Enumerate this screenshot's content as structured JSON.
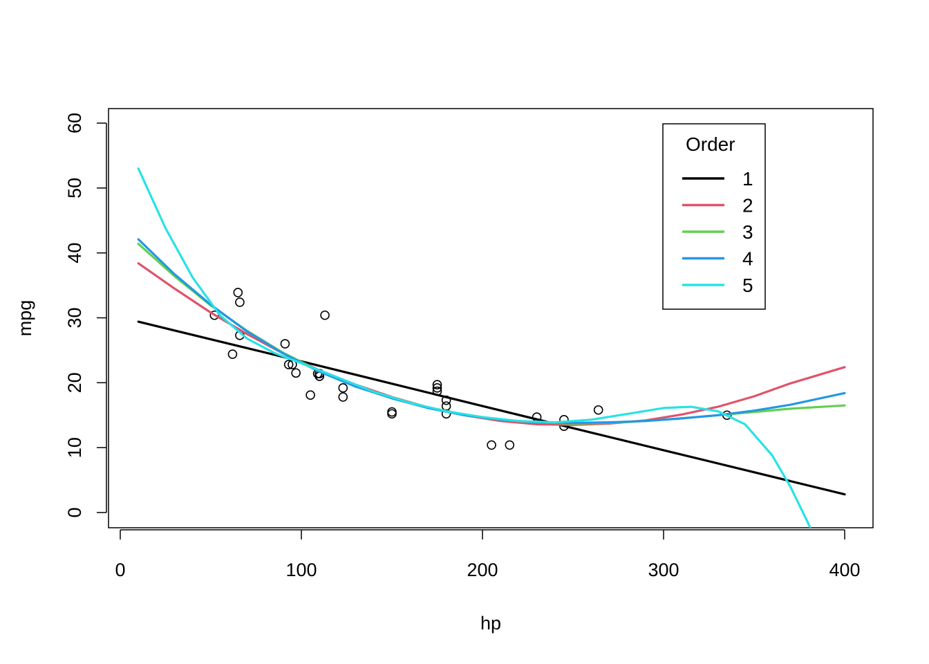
{
  "chart_data": {
    "type": "scatter",
    "title": "",
    "xlabel": "hp",
    "ylabel": "mpg",
    "xlim": [
      10,
      400
    ],
    "ylim": [
      0,
      60
    ],
    "xticks": [
      0,
      100,
      200,
      300,
      400
    ],
    "yticks": [
      0,
      10,
      20,
      30,
      40,
      50,
      60
    ],
    "grid": false,
    "points": [
      {
        "x": 110,
        "y": 21.0
      },
      {
        "x": 110,
        "y": 21.0
      },
      {
        "x": 93,
        "y": 22.8
      },
      {
        "x": 110,
        "y": 21.4
      },
      {
        "x": 175,
        "y": 18.7
      },
      {
        "x": 105,
        "y": 18.1
      },
      {
        "x": 245,
        "y": 14.3
      },
      {
        "x": 62,
        "y": 24.4
      },
      {
        "x": 95,
        "y": 22.8
      },
      {
        "x": 123,
        "y": 19.2
      },
      {
        "x": 123,
        "y": 17.8
      },
      {
        "x": 180,
        "y": 16.4
      },
      {
        "x": 180,
        "y": 17.3
      },
      {
        "x": 180,
        "y": 15.2
      },
      {
        "x": 205,
        "y": 10.4
      },
      {
        "x": 215,
        "y": 10.4
      },
      {
        "x": 230,
        "y": 14.7
      },
      {
        "x": 66,
        "y": 32.4
      },
      {
        "x": 52,
        "y": 30.4
      },
      {
        "x": 65,
        "y": 33.9
      },
      {
        "x": 97,
        "y": 21.5
      },
      {
        "x": 150,
        "y": 15.5
      },
      {
        "x": 150,
        "y": 15.2
      },
      {
        "x": 245,
        "y": 13.3
      },
      {
        "x": 175,
        "y": 19.2
      },
      {
        "x": 66,
        "y": 27.3
      },
      {
        "x": 91,
        "y": 26.0
      },
      {
        "x": 113,
        "y": 30.4
      },
      {
        "x": 264,
        "y": 15.8
      },
      {
        "x": 175,
        "y": 19.7
      },
      {
        "x": 335,
        "y": 15.0
      },
      {
        "x": 109,
        "y": 21.4
      }
    ],
    "legend": {
      "title": "Order",
      "placement": "top-right"
    },
    "series": [
      {
        "name": "1",
        "color": "#000000",
        "x": [
          10,
          100,
          200,
          300,
          400
        ],
        "y": [
          29.4,
          23.3,
          16.4,
          9.6,
          2.8
        ]
      },
      {
        "name": "2",
        "color": "#DF536B",
        "x": [
          10,
          30,
          50,
          70,
          90,
          110,
          130,
          150,
          170,
          190,
          210,
          230,
          250,
          270,
          290,
          310,
          330,
          350,
          370,
          400
        ],
        "y": [
          38.4,
          34.5,
          30.8,
          27.5,
          24.5,
          21.9,
          19.7,
          17.8,
          16.2,
          15.0,
          14.1,
          13.6,
          13.5,
          13.7,
          14.2,
          15.1,
          16.3,
          17.9,
          19.9,
          22.4
        ]
      },
      {
        "name": "3",
        "color": "#61D04F",
        "x": [
          10,
          30,
          50,
          70,
          90,
          110,
          130,
          150,
          170,
          190,
          210,
          230,
          250,
          270,
          290,
          310,
          330,
          350,
          370,
          400
        ],
        "y": [
          41.4,
          36.4,
          31.9,
          28.0,
          24.6,
          21.8,
          19.5,
          17.7,
          16.2,
          15.1,
          14.3,
          13.9,
          13.7,
          13.8,
          14.1,
          14.5,
          15.0,
          15.5,
          16.0,
          16.5
        ]
      },
      {
        "name": "4",
        "color": "#2297E6",
        "x": [
          10,
          30,
          50,
          70,
          90,
          110,
          130,
          150,
          170,
          190,
          210,
          230,
          250,
          270,
          290,
          310,
          330,
          350,
          370,
          400
        ],
        "y": [
          42.1,
          36.7,
          32.0,
          27.9,
          24.5,
          21.7,
          19.4,
          17.6,
          16.1,
          15.0,
          14.3,
          13.9,
          13.8,
          13.9,
          14.1,
          14.5,
          15.0,
          15.7,
          16.6,
          18.4
        ]
      },
      {
        "name": "5",
        "color": "#28E2E5",
        "x": [
          10,
          25,
          40,
          55,
          70,
          85,
          100,
          120,
          140,
          160,
          180,
          200,
          220,
          240,
          260,
          280,
          300,
          315,
          330,
          345,
          360,
          370,
          381
        ],
        "y": [
          53.0,
          43.8,
          36.2,
          30.4,
          26.8,
          24.6,
          23.0,
          20.8,
          18.6,
          16.9,
          15.6,
          14.7,
          14.1,
          13.9,
          14.3,
          15.2,
          16.1,
          16.3,
          15.6,
          13.6,
          8.8,
          4.0,
          -2.3
        ]
      }
    ]
  }
}
